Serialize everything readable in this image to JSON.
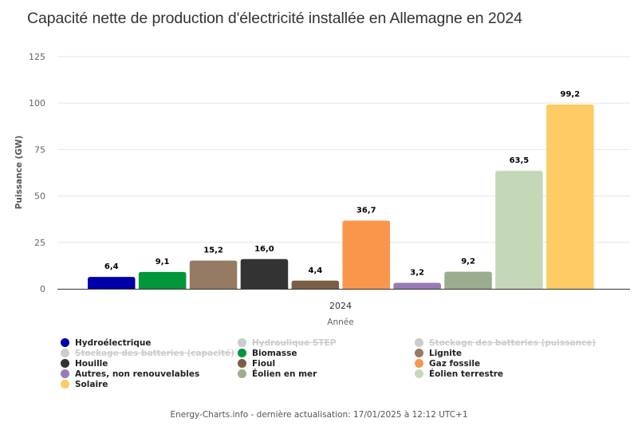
{
  "chart_data": {
    "type": "bar",
    "title": "Capacité nette de production d'électricité installée en Allemagne en 2024",
    "xlabel": "Année",
    "ylabel": "Puissance (GW)",
    "categories": [
      "2024"
    ],
    "ylim": [
      0,
      125
    ],
    "yticks": [
      "0",
      "25",
      "50",
      "75",
      "100",
      "125"
    ],
    "ytick_values": [
      0,
      25,
      50,
      75,
      100,
      125
    ],
    "grid": true,
    "legend_position": "bottom",
    "series": [
      {
        "name": "Hydroélectrique",
        "values": [
          6.4
        ],
        "label": "6,4",
        "color": "#0000a8",
        "visible": true
      },
      {
        "name": "Hydraulique STEP",
        "values": [
          null
        ],
        "label": "",
        "color": "#cccccc",
        "visible": false
      },
      {
        "name": "Stockage des batteries (puissance)",
        "values": [
          null
        ],
        "label": "",
        "color": "#cccccc",
        "visible": false
      },
      {
        "name": "Stockage des batteries (capacité)",
        "values": [
          null
        ],
        "label": "",
        "color": "#cccccc",
        "visible": false
      },
      {
        "name": "Biomasse",
        "values": [
          9.1
        ],
        "label": "9,1",
        "color": "#00963a",
        "visible": true
      },
      {
        "name": "Lignite",
        "values": [
          15.2
        ],
        "label": "15,2",
        "color": "#957b63",
        "visible": true
      },
      {
        "name": "Houille",
        "values": [
          16.0
        ],
        "label": "16,0",
        "color": "#333333",
        "visible": true
      },
      {
        "name": "Fioul",
        "values": [
          4.4
        ],
        "label": "4,4",
        "color": "#7b5e45",
        "visible": true
      },
      {
        "name": "Gaz fossile",
        "values": [
          36.7
        ],
        "label": "36,7",
        "color": "#fa964b",
        "visible": true
      },
      {
        "name": "Autres, non renouvelables",
        "values": [
          3.2
        ],
        "label": "3,2",
        "color": "#9a79b4",
        "visible": true
      },
      {
        "name": "Éolien en mer",
        "values": [
          9.2
        ],
        "label": "9,2",
        "color": "#9aae8f",
        "visible": true
      },
      {
        "name": "Éolien terrestre",
        "values": [
          63.5
        ],
        "label": "63,5",
        "color": "#c4d8b8",
        "visible": true
      },
      {
        "name": "Solaire",
        "values": [
          99.2
        ],
        "label": "99,2",
        "color": "#ffcb64",
        "visible": true
      }
    ]
  },
  "footer": "Energy-Charts.info - dernière actualisation: 17/01/2025 à 12:12 UTC+1"
}
